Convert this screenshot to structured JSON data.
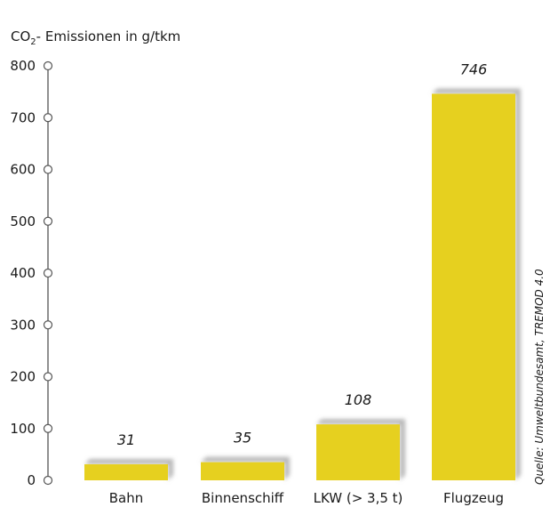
{
  "chart_data": {
    "type": "bar",
    "ylabel_prefix": "CO",
    "ylabel_sub": "2",
    "ylabel_suffix": "- Emissionen in g/tkm",
    "categories": [
      "Bahn",
      "Binnenschiff",
      "LKW (> 3,5 t)",
      "Flugzeug"
    ],
    "values": [
      31,
      35,
      108,
      746
    ],
    "value_labels": [
      "31",
      "35",
      "108",
      "746"
    ],
    "yticks": [
      0,
      100,
      200,
      300,
      400,
      500,
      600,
      700,
      800
    ],
    "ylim": [
      0,
      800
    ],
    "source": "Quelle: Umweltbundesamt, TREMOD 4.0",
    "colors": {
      "bar": "#e6d01f",
      "shadow": "#b8b8b8",
      "axis": "#555555"
    },
    "grid": false
  }
}
